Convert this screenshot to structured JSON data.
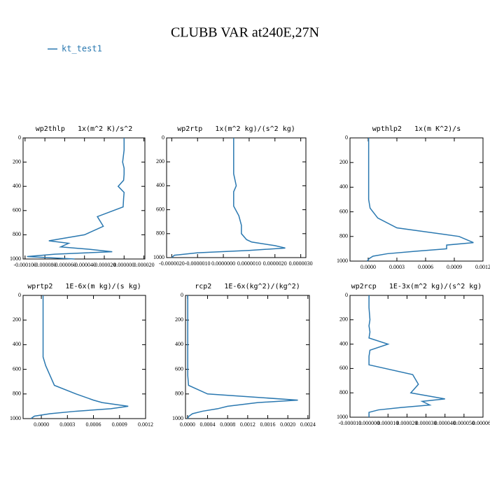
{
  "title": "CLUBB VAR at240E,27N",
  "legend": {
    "name": "kt_test1",
    "color": "#2a78b0"
  },
  "chart_data": [
    {
      "type": "line",
      "title": "wp2thlp   1x(m^2 K)/s^2",
      "levels": [
        0,
        100,
        200,
        250,
        300,
        350,
        400,
        450,
        500,
        570,
        650,
        730,
        800,
        850,
        870,
        900,
        920,
        940,
        960,
        980,
        1000
      ],
      "values": [
        0,
        0,
        -1.5e-06,
        0,
        0,
        -5e-07,
        -6e-06,
        0,
        -5e-07,
        -1e-06,
        -2.7e-05,
        -2.1e-05,
        -4e-05,
        -7.6e-05,
        -5.6e-05,
        -6.4e-05,
        -3.5e-05,
        -1.2e-05,
        -7e-05,
        -9.8e-05,
        -5e-05
      ],
      "xlim": [
        -0.000102,
        2.1e-05
      ],
      "xticks": [
        {
          "value": -0.0001,
          "label": "-0.000100"
        },
        {
          "value": -8e-05,
          "label": "-0.000080"
        },
        {
          "value": -6e-05,
          "label": "-0.000060"
        },
        {
          "value": -4e-05,
          "label": "-0.000040"
        },
        {
          "value": -2e-05,
          "label": "-0.000020"
        },
        {
          "value": 0,
          "label": "0.000000"
        },
        {
          "value": 2e-05,
          "label": "0.000020"
        }
      ],
      "ylim": [
        1000,
        0
      ],
      "yticks": [
        0,
        200,
        400,
        600,
        800,
        1000
      ]
    },
    {
      "type": "line",
      "title": "wp2rtp   1x(m^2 kg)/(s^2 kg)",
      "levels": [
        0,
        100,
        200,
        250,
        300,
        350,
        400,
        450,
        500,
        570,
        650,
        730,
        800,
        850,
        870,
        900,
        920,
        940,
        960,
        980,
        1000
      ],
      "values": [
        4e-07,
        4e-07,
        4e-07,
        4e-07,
        4e-07,
        4.5e-07,
        5e-07,
        4e-07,
        4e-07,
        4e-07,
        6e-07,
        7e-07,
        7e-07,
        9e-07,
        1.1e-06,
        2e-06,
        2.4e-06,
        1e-06,
        -1e-06,
        -1.9e-06,
        -2e-06
      ],
      "xlim": [
        -2.2e-06,
        3.2e-06
      ],
      "xticks": [
        {
          "value": -2e-06,
          "label": "-0.0000020"
        },
        {
          "value": -1e-06,
          "label": "-0.0000010"
        },
        {
          "value": 0,
          "label": "0.0000000"
        },
        {
          "value": 1e-06,
          "label": "0.0000010"
        },
        {
          "value": 2e-06,
          "label": "0.0000020"
        },
        {
          "value": 3e-06,
          "label": "0.0000030"
        }
      ],
      "ylim": [
        1000,
        0
      ],
      "yticks": [
        0,
        200,
        400,
        600,
        800,
        1000
      ]
    },
    {
      "type": "line",
      "title": "wpthlp2   1x(m K^2)/s",
      "levels": [
        0,
        100,
        200,
        250,
        300,
        350,
        400,
        450,
        500,
        570,
        650,
        730,
        800,
        850,
        870,
        900,
        920,
        940,
        960,
        980,
        1000
      ],
      "values": [
        5e-06,
        5e-06,
        5e-06,
        5e-06,
        5e-06,
        5e-06,
        5e-06,
        5e-06,
        5e-06,
        2e-05,
        0.0001,
        0.0003,
        0.00095,
        0.0011,
        0.00082,
        0.00082,
        0.0005,
        0.0002,
        5e-05,
        1e-05,
        -1e-05
      ],
      "xlim": [
        -0.00019,
        0.0012
      ],
      "xticks": [
        {
          "value": 0,
          "label": "0.0000"
        },
        {
          "value": 0.0003,
          "label": "0.0003"
        },
        {
          "value": 0.0006,
          "label": "0.0006"
        },
        {
          "value": 0.0009,
          "label": "0.0009"
        },
        {
          "value": 0.0012,
          "label": "0.0012"
        }
      ],
      "ylim": [
        1000,
        0
      ],
      "yticks": [
        0,
        200,
        400,
        600,
        800,
        1000
      ]
    },
    {
      "type": "line",
      "title": "wprtp2   1E-6x(m kg)/(s kg)",
      "levels": [
        0,
        100,
        200,
        250,
        300,
        350,
        400,
        450,
        500,
        570,
        650,
        730,
        800,
        850,
        870,
        900,
        920,
        940,
        960,
        980,
        1000
      ],
      "values": [
        2e-05,
        2e-05,
        2e-05,
        2e-05,
        2e-05,
        2e-05,
        2e-05,
        2e-05,
        2e-05,
        5e-05,
        0.0001,
        0.00015,
        0.0004,
        0.0006,
        0.0007,
        0.001,
        0.0008,
        0.0004,
        0.0001,
        -8e-05,
        -0.00012
      ],
      "xlim": [
        -0.00021,
        0.0012
      ],
      "xticks": [
        {
          "value": 0,
          "label": "0.0000"
        },
        {
          "value": 0.0003,
          "label": "0.0003"
        },
        {
          "value": 0.0006,
          "label": "0.0006"
        },
        {
          "value": 0.0009,
          "label": "0.0009"
        },
        {
          "value": 0.0012,
          "label": "0.0012"
        }
      ],
      "ylim": [
        1000,
        0
      ],
      "yticks": [
        0,
        200,
        400,
        600,
        800,
        1000
      ]
    },
    {
      "type": "line",
      "title": "rcp2   1E-6x(kg^2)/(kg^2)",
      "levels": [
        0,
        100,
        200,
        250,
        300,
        350,
        400,
        450,
        500,
        570,
        650,
        730,
        800,
        850,
        870,
        900,
        920,
        940,
        960,
        980,
        1000
      ],
      "values": [
        5e-06,
        5e-06,
        5e-06,
        5e-06,
        5e-06,
        5e-06,
        5e-06,
        5e-06,
        5e-06,
        5e-06,
        5e-06,
        2e-05,
        0.0004,
        0.0022,
        0.0014,
        0.0008,
        0.0006,
        0.0003,
        0.0001,
        3e-05,
        0
      ],
      "xlim": [
        -4e-05,
        0.00243
      ],
      "xticks": [
        {
          "value": 0,
          "label": "0.0000"
        },
        {
          "value": 0.0004,
          "label": "0.0004"
        },
        {
          "value": 0.0008,
          "label": "0.0008"
        },
        {
          "value": 0.0012,
          "label": "0.0012"
        },
        {
          "value": 0.0016,
          "label": "0.0016"
        },
        {
          "value": 0.002,
          "label": "0.0020"
        },
        {
          "value": 0.0024,
          "label": "0.0024"
        }
      ],
      "ylim": [
        1000,
        0
      ],
      "yticks": [
        0,
        200,
        400,
        600,
        800,
        1000
      ]
    },
    {
      "type": "line",
      "title": "wp2rcp   1E-3x(m^2 kg)/(s^2 kg)",
      "levels": [
        0,
        100,
        200,
        250,
        300,
        350,
        400,
        450,
        500,
        570,
        650,
        730,
        800,
        850,
        870,
        900,
        920,
        940,
        960,
        980,
        1000
      ],
      "values": [
        0,
        0,
        5e-07,
        0,
        5e-07,
        0,
        1e-05,
        5e-07,
        0,
        0,
        2.3e-05,
        2.6e-05,
        2.2e-05,
        4e-05,
        2.8e-05,
        3.2e-05,
        1.7e-05,
        5e-06,
        0,
        0,
        0
      ],
      "xlim": [
        -1e-05,
        6e-05
      ],
      "xticks": [
        {
          "value": -1e-05,
          "label": "-0.000010"
        },
        {
          "value": 0,
          "label": "0.000000"
        },
        {
          "value": 1e-05,
          "label": "0.000010"
        },
        {
          "value": 2e-05,
          "label": "0.000020"
        },
        {
          "value": 3e-05,
          "label": "0.000030"
        },
        {
          "value": 4e-05,
          "label": "0.000040"
        },
        {
          "value": 5e-05,
          "label": "0.000050"
        },
        {
          "value": 6e-05,
          "label": "0.000060"
        }
      ],
      "ylim": [
        1000,
        0
      ],
      "yticks": [
        0,
        200,
        400,
        600,
        800,
        1000
      ]
    }
  ]
}
